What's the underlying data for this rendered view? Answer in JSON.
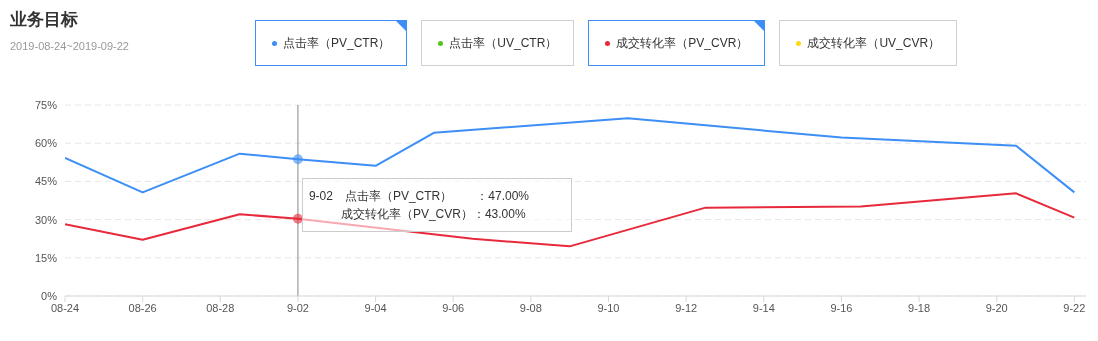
{
  "chart_data": {
    "type": "line",
    "title": "业务目标",
    "subtitle": "2019-08-24~2019-09-22",
    "categories": [
      "08-24",
      null,
      null,
      null,
      "08-26",
      null,
      null,
      null,
      "08-28",
      null,
      null,
      null,
      "9-02",
      null,
      null,
      null,
      "9-04",
      null,
      null,
      null,
      "9-06",
      null,
      null,
      null,
      "9-08",
      null,
      null,
      null,
      "9-10",
      null,
      null,
      null,
      "9-12",
      null,
      null,
      null,
      "9-14",
      null,
      null,
      null,
      "9-16",
      null,
      null,
      null,
      "9-18",
      null,
      null,
      null,
      "9-20",
      null,
      null,
      null,
      "9-22"
    ],
    "ylim": [
      0,
      75
    ],
    "yticks": [
      {
        "value": 0,
        "label": "0%"
      },
      {
        "value": 15,
        "label": "15%"
      },
      {
        "value": 30,
        "label": "30%"
      },
      {
        "value": 45,
        "label": "45%"
      },
      {
        "value": 60,
        "label": "60%"
      },
      {
        "value": 75,
        "label": "75%"
      }
    ],
    "series": [
      {
        "name": "点击率（PV_CTR）",
        "color": "#3d8ef5",
        "values": [
          54.2,
          null,
          null,
          null,
          40.7,
          null,
          null,
          null,
          null,
          55.9,
          null,
          null,
          53.7,
          null,
          null,
          null,
          51.1,
          null,
          null,
          64.1,
          null,
          null,
          null,
          null,
          null,
          null,
          null,
          null,
          null,
          69.8,
          null,
          null,
          null,
          null,
          null,
          null,
          null,
          null,
          null,
          null,
          62.2,
          null,
          null,
          null,
          null,
          null,
          null,
          null,
          null,
          59,
          null,
          null,
          40.7
        ]
      },
      {
        "name": "点击率（UV_CTR）",
        "color": "#52c41a",
        "values": [
          null,
          null,
          null,
          null,
          null,
          null,
          null,
          null,
          null,
          null,
          null,
          null,
          null,
          null,
          null,
          null,
          null,
          null,
          null,
          null,
          null,
          null,
          null,
          null,
          null,
          null,
          null,
          null,
          null,
          null,
          null,
          null,
          null,
          null,
          null,
          null,
          null,
          null,
          null,
          null,
          null,
          null,
          null,
          null,
          null,
          null,
          null,
          null,
          null,
          null,
          null,
          null,
          null
        ]
      },
      {
        "name": "成交转化率（PV_CVR）",
        "color": "#e8293b",
        "values": [
          28.2,
          null,
          null,
          null,
          22.1,
          null,
          null,
          null,
          null,
          32.1,
          null,
          null,
          30.3,
          null,
          null,
          null,
          null,
          null,
          null,
          null,
          null,
          22.5,
          null,
          null,
          null,
          null,
          19.5,
          null,
          null,
          null,
          null,
          null,
          null,
          34.7,
          null,
          null,
          null,
          null,
          null,
          null,
          null,
          35.1,
          null,
          null,
          null,
          null,
          null,
          null,
          null,
          40.3,
          null,
          null,
          30.8
        ]
      },
      {
        "name": "成交转化率（UV_CVR）",
        "color": "#fadb14",
        "values": [
          null,
          null,
          null,
          null,
          null,
          null,
          null,
          null,
          null,
          null,
          null,
          null,
          null,
          null,
          null,
          null,
          null,
          null,
          null,
          null,
          null,
          null,
          null,
          null,
          null,
          null,
          null,
          null,
          null,
          null,
          null,
          null,
          null,
          null,
          null,
          null,
          null,
          null,
          null,
          null,
          null,
          null,
          null,
          null,
          null,
          null,
          null,
          null,
          null,
          null,
          null,
          null,
          null
        ]
      }
    ],
    "ref_lines": [
      {
        "axis": "x",
        "value": "9-02",
        "color": "#888888"
      }
    ],
    "annotations": [
      "9-02　点击率（PV_CTR）　　：47.00%",
      "成交转化率（PV_CVR）：43.00%"
    ],
    "grid": "y",
    "legend": "top",
    "marker": "none",
    "line_style": "solid"
  }
}
